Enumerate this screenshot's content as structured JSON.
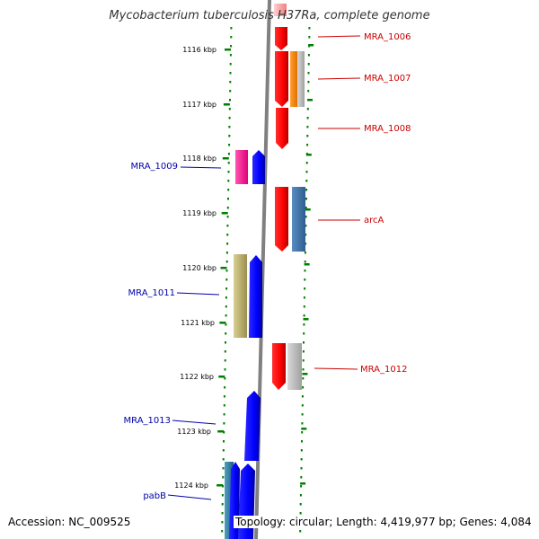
{
  "title": "Mycobacterium tuberculosis H37Ra, complete genome",
  "footer": {
    "accession": "Accession: NC_009525",
    "summary": "Topology: circular; Length: 4,419,977 bp; Genes: 4,084"
  },
  "ticks": [
    "1116 kbp",
    "1117 kbp",
    "1118 kbp",
    "1119 kbp",
    "1120 kbp",
    "1121 kbp",
    "1122 kbp",
    "1123 kbp",
    "1124 kbp"
  ],
  "genes": [
    {
      "label": "MRA_1006",
      "strand": "forward",
      "color": "#ff0000"
    },
    {
      "label": "MRA_1007",
      "strand": "forward",
      "color": "#ff0000"
    },
    {
      "label": "MRA_1008",
      "strand": "forward",
      "color": "#ff0000"
    },
    {
      "label": "MRA_1009",
      "strand": "reverse",
      "color": "#0000ff"
    },
    {
      "label": "arcA",
      "strand": "forward",
      "color": "#ff0000"
    },
    {
      "label": "MRA_1011",
      "strand": "reverse",
      "color": "#0000ff"
    },
    {
      "label": "MRA_1012",
      "strand": "forward",
      "color": "#ff0000"
    },
    {
      "label": "MRA_1013",
      "strand": "reverse",
      "color": "#0000ff"
    },
    {
      "label": "pabB",
      "strand": "reverse",
      "color": "#0000ff"
    }
  ],
  "colors": {
    "forward_label": "#cc0000",
    "reverse_label": "#0000aa",
    "backbone": "#808080",
    "ruler": "#008000"
  }
}
